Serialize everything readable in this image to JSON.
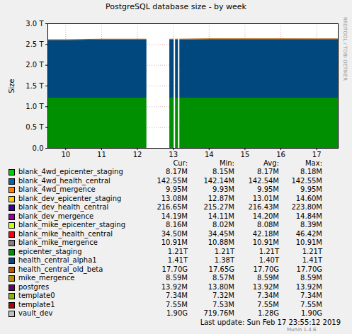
{
  "chart_data": {
    "type": "area",
    "stacked": true,
    "title": "PostgreSQL database size - by week",
    "y_label": "Size",
    "side_text": "RRDTOOL / TOBI OETIKER",
    "footer": "Last update: Sun Feb 17 23:55:12 2019",
    "credit": "Munin 1.4.6",
    "grid": true,
    "x": [
      9.5,
      10,
      11,
      12,
      12.26,
      12.27,
      12.9,
      13.02,
      13.04,
      13.06,
      13.14,
      13.16,
      13.18,
      14,
      15,
      16,
      17,
      17.6
    ],
    "xlim": [
      9.5,
      17.6
    ],
    "xticks": [
      10,
      11,
      12,
      13,
      14,
      15,
      16,
      17
    ],
    "ylim": [
      0,
      3
    ],
    "yticks": [
      {
        "value": 0,
        "label": "0.0"
      },
      {
        "value": 0.5,
        "label": "0.5 T"
      },
      {
        "value": 1,
        "label": "1.0 T"
      },
      {
        "value": 1.5,
        "label": "1.5 T"
      },
      {
        "value": 2,
        "label": "2.0 T"
      },
      {
        "value": 2.5,
        "label": "2.5 T"
      },
      {
        "value": 3,
        "label": "3.0 T"
      }
    ],
    "stat_columns": [
      "Cur:",
      "Min:",
      "Avg:",
      "Max:"
    ],
    "series": [
      {
        "name": "blank_4wd_epicenter_staging",
        "color": "#00CC00",
        "stats": [
          "8.17M",
          "8.15M",
          "8.17M",
          "8.18M"
        ],
        "values": [
          8.17e-06,
          8.17e-06,
          8.17e-06,
          8.17e-06,
          8.17e-06,
          null,
          8.17e-06,
          8.17e-06,
          null,
          8.17e-06,
          8.17e-06,
          null,
          8.17e-06,
          8.17e-06,
          8.17e-06,
          8.17e-06,
          8.17e-06,
          8.17e-06
        ]
      },
      {
        "name": "blank_4wd_health_central",
        "color": "#0066B3",
        "stats": [
          "142.55M",
          "142.14M",
          "142.54M",
          "142.55M"
        ],
        "values": [
          0.00014255,
          0.00014255,
          0.00014255,
          0.00014255,
          0.00014255,
          null,
          0.00014255,
          0.00014255,
          null,
          0.00014255,
          0.00014255,
          null,
          0.00014255,
          0.00014255,
          0.00014255,
          0.00014255,
          0.00014255,
          0.00014255
        ]
      },
      {
        "name": "blank_4wd_mergence",
        "color": "#FF8000",
        "stats": [
          "9.95M",
          "9.93M",
          "9.95M",
          "9.95M"
        ],
        "values": [
          9.95e-06,
          9.95e-06,
          9.95e-06,
          9.95e-06,
          9.95e-06,
          null,
          9.95e-06,
          9.95e-06,
          null,
          9.95e-06,
          9.95e-06,
          null,
          9.95e-06,
          9.95e-06,
          9.95e-06,
          9.95e-06,
          9.95e-06,
          9.95e-06
        ]
      },
      {
        "name": "blank_dev_epicenter_staging",
        "color": "#FFCC00",
        "stats": [
          "13.08M",
          "12.87M",
          "13.01M",
          "14.60M"
        ],
        "values": [
          1.308e-05,
          1.308e-05,
          1.308e-05,
          1.308e-05,
          1.308e-05,
          null,
          1.308e-05,
          1.308e-05,
          null,
          1.308e-05,
          1.308e-05,
          null,
          1.308e-05,
          1.308e-05,
          1.308e-05,
          1.308e-05,
          1.308e-05,
          1.308e-05
        ]
      },
      {
        "name": "blank_dev_health_central",
        "color": "#330099",
        "stats": [
          "216.65M",
          "215.27M",
          "216.43M",
          "223.80M"
        ],
        "values": [
          0.00021665,
          0.00021665,
          0.00021665,
          0.00021665,
          0.00021665,
          null,
          0.00021665,
          0.00021665,
          null,
          0.00021665,
          0.00021665,
          null,
          0.00021665,
          0.00021665,
          0.00021665,
          0.00021665,
          0.00021665,
          0.00021665
        ]
      },
      {
        "name": "blank_dev_mergence",
        "color": "#990099",
        "stats": [
          "14.19M",
          "14.11M",
          "14.20M",
          "14.84M"
        ],
        "values": [
          1.419e-05,
          1.419e-05,
          1.419e-05,
          1.419e-05,
          1.419e-05,
          null,
          1.419e-05,
          1.419e-05,
          null,
          1.419e-05,
          1.419e-05,
          null,
          1.419e-05,
          1.419e-05,
          1.419e-05,
          1.419e-05,
          1.419e-05,
          1.419e-05
        ]
      },
      {
        "name": "blank_mike_epicenter_staging",
        "color": "#CCFF00",
        "stats": [
          "8.16M",
          "8.02M",
          "8.08M",
          "8.39M"
        ],
        "values": [
          8.16e-06,
          8.16e-06,
          8.16e-06,
          8.16e-06,
          8.16e-06,
          null,
          8.16e-06,
          8.16e-06,
          null,
          8.16e-06,
          8.16e-06,
          null,
          8.16e-06,
          8.16e-06,
          8.16e-06,
          8.16e-06,
          8.16e-06,
          8.16e-06
        ]
      },
      {
        "name": "blank_mike_health_central",
        "color": "#FF0000",
        "stats": [
          "34.50M",
          "34.45M",
          "42.18M",
          "46.42M"
        ],
        "values": [
          3.45e-05,
          3.45e-05,
          3.45e-05,
          3.45e-05,
          3.45e-05,
          null,
          3.45e-05,
          3.45e-05,
          null,
          3.45e-05,
          3.45e-05,
          null,
          3.45e-05,
          3.45e-05,
          3.45e-05,
          3.45e-05,
          3.45e-05,
          3.45e-05
        ]
      },
      {
        "name": "blank_mike_mergence",
        "color": "#808080",
        "stats": [
          "10.91M",
          "10.88M",
          "10.91M",
          "10.91M"
        ],
        "values": [
          1.091e-05,
          1.091e-05,
          1.091e-05,
          1.091e-05,
          1.091e-05,
          null,
          1.091e-05,
          1.091e-05,
          null,
          1.091e-05,
          1.091e-05,
          null,
          1.091e-05,
          1.091e-05,
          1.091e-05,
          1.091e-05,
          1.091e-05,
          1.091e-05
        ]
      },
      {
        "name": "epicenter_staging",
        "color": "#008F00",
        "stats": [
          "1.21T",
          "1.21T",
          "1.21T",
          "1.21T"
        ],
        "values": [
          1.21,
          1.21,
          1.21,
          1.21,
          1.21,
          null,
          1.21,
          1.21,
          null,
          1.21,
          1.21,
          null,
          1.21,
          1.21,
          1.21,
          1.21,
          1.21,
          1.21
        ]
      },
      {
        "name": "health_central_alpha1",
        "color": "#00487D",
        "stats": [
          "1.41T",
          "1.38T",
          "1.40T",
          "1.41T"
        ],
        "values": [
          1.39,
          1.39,
          1.4,
          1.4,
          1.4,
          null,
          1.4,
          1.4,
          null,
          1.4,
          1.4,
          null,
          1.4,
          1.41,
          1.41,
          1.41,
          1.41,
          1.41
        ]
      },
      {
        "name": "health_central_old_beta",
        "color": "#B35A00",
        "stats": [
          "17.70G",
          "17.65G",
          "17.70G",
          "17.70G"
        ],
        "values": [
          0.0177,
          0.0177,
          0.0177,
          0.0177,
          0.0177,
          null,
          0.0177,
          0.0177,
          null,
          0.0177,
          0.0177,
          null,
          0.0177,
          0.0177,
          0.0177,
          0.0177,
          0.0177,
          0.0177
        ]
      },
      {
        "name": "mike_mergence",
        "color": "#B38F00",
        "stats": [
          "8.59M",
          "8.57M",
          "8.59M",
          "8.59M"
        ],
        "values": [
          8.59e-06,
          8.59e-06,
          8.59e-06,
          8.59e-06,
          8.59e-06,
          null,
          8.59e-06,
          8.59e-06,
          null,
          8.59e-06,
          8.59e-06,
          null,
          8.59e-06,
          8.59e-06,
          8.59e-06,
          8.59e-06,
          8.59e-06,
          8.59e-06
        ]
      },
      {
        "name": "postgres",
        "color": "#6B006B",
        "stats": [
          "13.92M",
          "13.80M",
          "13.92M",
          "13.92M"
        ],
        "values": [
          1.392e-05,
          1.392e-05,
          1.392e-05,
          1.392e-05,
          1.392e-05,
          null,
          1.392e-05,
          1.392e-05,
          null,
          1.392e-05,
          1.392e-05,
          null,
          1.392e-05,
          1.392e-05,
          1.392e-05,
          1.392e-05,
          1.392e-05,
          1.392e-05
        ]
      },
      {
        "name": "template0",
        "color": "#8FB300",
        "stats": [
          "7.34M",
          "7.32M",
          "7.34M",
          "7.34M"
        ],
        "values": [
          7.34e-06,
          7.34e-06,
          7.34e-06,
          7.34e-06,
          7.34e-06,
          null,
          7.34e-06,
          7.34e-06,
          null,
          7.34e-06,
          7.34e-06,
          null,
          7.34e-06,
          7.34e-06,
          7.34e-06,
          7.34e-06,
          7.34e-06,
          7.34e-06
        ]
      },
      {
        "name": "template1",
        "color": "#B30000",
        "stats": [
          "7.55M",
          "7.53M",
          "7.55M",
          "7.55M"
        ],
        "values": [
          7.55e-06,
          7.55e-06,
          7.55e-06,
          7.55e-06,
          7.55e-06,
          null,
          7.55e-06,
          7.55e-06,
          null,
          7.55e-06,
          7.55e-06,
          null,
          7.55e-06,
          7.55e-06,
          7.55e-06,
          7.55e-06,
          7.55e-06,
          7.55e-06
        ]
      },
      {
        "name": "vault_dev",
        "color": "#BEBEBE",
        "stats": [
          "1.90G",
          "719.76M",
          "1.28G",
          "1.90G"
        ],
        "values": [
          0.0008,
          0.0009,
          0.001,
          0.0011,
          0.0012,
          null,
          0.0013,
          0.0013,
          null,
          0.0013,
          0.0013,
          null,
          0.0013,
          0.0014,
          0.0016,
          0.0017,
          0.0018,
          0.0019
        ]
      }
    ]
  }
}
